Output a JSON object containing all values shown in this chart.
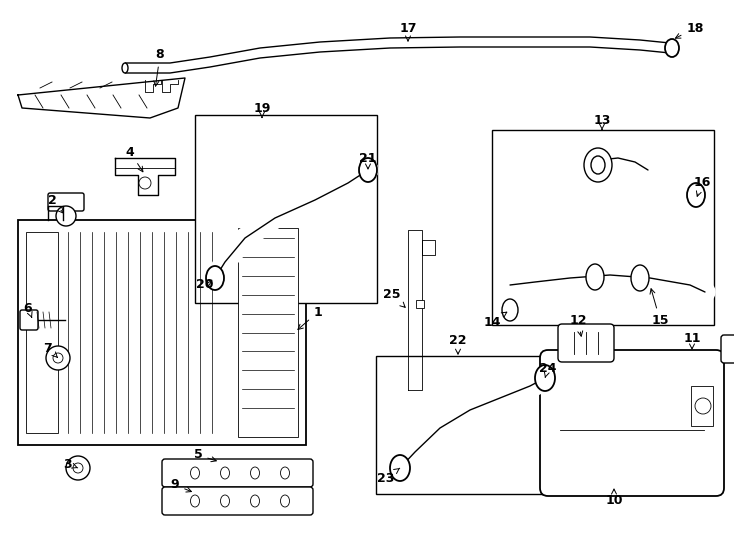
{
  "bg": "#ffffff",
  "lc": "#000000",
  "lw": 1.0,
  "lwt": 0.6,
  "fs": 9,
  "figw": 7.34,
  "figh": 5.4,
  "dpi": 100
}
